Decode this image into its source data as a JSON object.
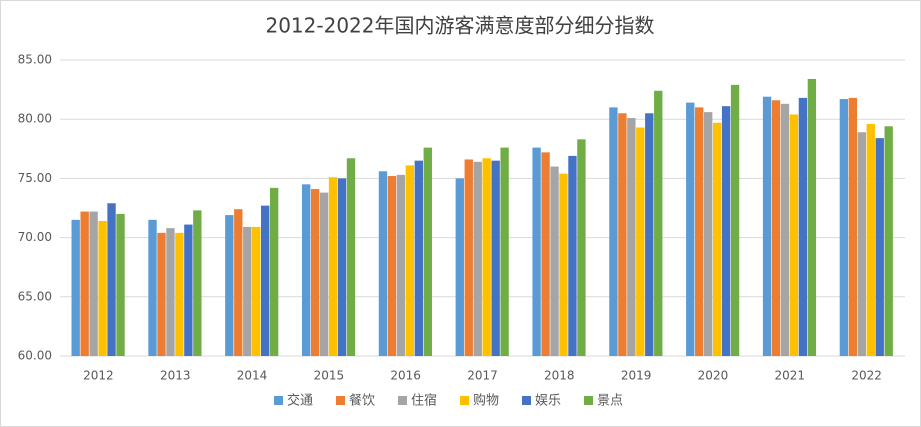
{
  "chart_data": {
    "type": "bar",
    "title": "2012-2022年国内游客满意度部分细分指数",
    "categories": [
      "2012",
      "2013",
      "2014",
      "2015",
      "2016",
      "2017",
      "2018",
      "2019",
      "2020",
      "2021",
      "2022"
    ],
    "series": [
      {
        "name": "交通",
        "color": "#5b9bd5",
        "values": [
          71.5,
          71.5,
          71.9,
          74.5,
          75.6,
          75.0,
          77.6,
          81.0,
          81.4,
          81.9,
          81.7
        ]
      },
      {
        "name": "餐饮",
        "color": "#ed7d31",
        "values": [
          72.2,
          70.4,
          72.4,
          74.1,
          75.2,
          76.6,
          77.2,
          80.5,
          81.0,
          81.6,
          81.8
        ]
      },
      {
        "name": "住宿",
        "color": "#a5a5a5",
        "values": [
          72.2,
          70.8,
          70.9,
          73.8,
          75.3,
          76.4,
          76.0,
          80.1,
          80.6,
          81.3,
          78.9
        ]
      },
      {
        "name": "购物",
        "color": "#ffc000",
        "values": [
          71.4,
          70.4,
          70.9,
          75.1,
          76.1,
          76.7,
          75.4,
          79.3,
          79.7,
          80.4,
          79.6
        ]
      },
      {
        "name": "娱乐",
        "color": "#4472c4",
        "values": [
          72.9,
          71.1,
          72.7,
          75.0,
          76.5,
          76.5,
          76.9,
          80.5,
          81.1,
          81.8,
          78.4
        ]
      },
      {
        "name": "景点",
        "color": "#70ad47",
        "values": [
          72.0,
          72.3,
          74.2,
          76.7,
          77.6,
          77.6,
          78.3,
          82.4,
          82.9,
          83.4,
          79.4
        ]
      }
    ],
    "ylim": [
      60,
      85
    ],
    "yticks": [
      {
        "value": 60,
        "label": "60.00"
      },
      {
        "value": 65,
        "label": "65.00"
      },
      {
        "value": 70,
        "label": "70.00"
      },
      {
        "value": 75,
        "label": "75.00"
      },
      {
        "value": 80,
        "label": "80.00"
      },
      {
        "value": 85,
        "label": "85.00"
      }
    ],
    "grid": true,
    "legend": "bottom"
  }
}
